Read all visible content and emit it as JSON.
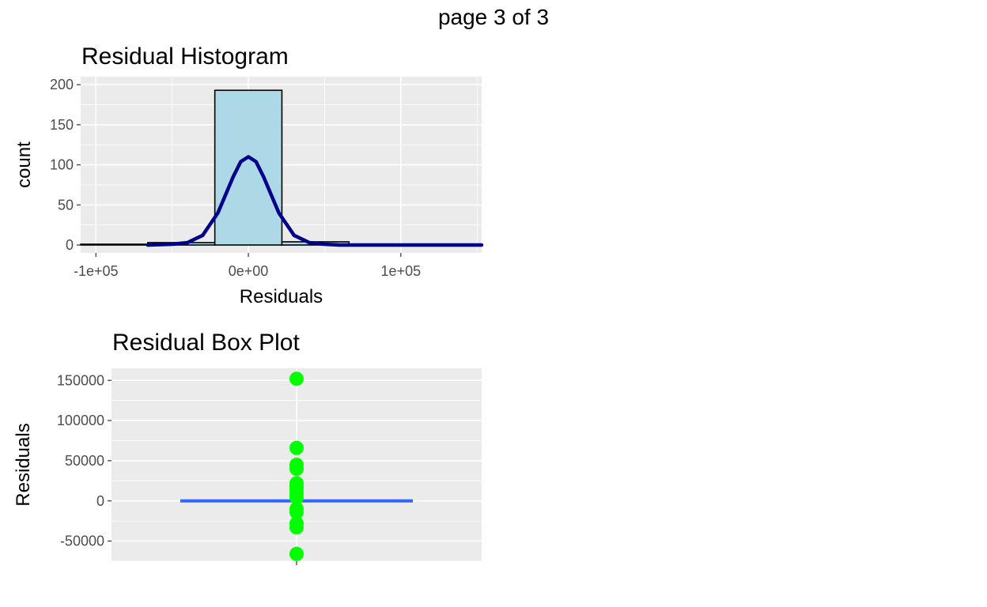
{
  "page": {
    "label": "page 3 of 3"
  },
  "chart_data": [
    {
      "type": "histogram",
      "title": "Residual Histogram",
      "xlabel": "Residuals",
      "ylabel": "count",
      "x_ticks": [
        -100000,
        0,
        100000
      ],
      "x_tick_labels": [
        "-1e+05",
        "0e+00",
        "1e+05"
      ],
      "y_ticks": [
        0,
        50,
        100,
        150,
        200
      ],
      "y_tick_labels": [
        "0",
        "50",
        "100",
        "150",
        "200"
      ],
      "xlim": [
        -110000,
        153000
      ],
      "ylim": [
        0,
        200
      ],
      "grid": true,
      "bins": [
        {
          "x0": -110000,
          "x1": -66000,
          "count": 1
        },
        {
          "x0": -66000,
          "x1": -22000,
          "count": 3
        },
        {
          "x0": -22000,
          "x1": 22000,
          "count": 193
        },
        {
          "x0": 22000,
          "x1": 66000,
          "count": 4
        },
        {
          "x0": 66000,
          "x1": 110000,
          "count": 1
        },
        {
          "x0": 110000,
          "x1": 153000,
          "count": 1
        }
      ],
      "density_curve": {
        "x": [
          -66000,
          -50000,
          -40000,
          -30000,
          -20000,
          -10000,
          -5000,
          0,
          5000,
          10000,
          20000,
          30000,
          40000,
          50000,
          60000,
          80000,
          110000,
          153000
        ],
        "y": [
          0,
          1,
          3,
          12,
          40,
          85,
          104,
          110,
          104,
          85,
          40,
          12,
          3,
          1,
          0,
          0,
          0,
          0
        ]
      },
      "colors": {
        "fill": "#ADD8E6",
        "outline": "#000000",
        "curve": "#00008B"
      }
    },
    {
      "type": "boxplot",
      "title": "Residual Box Plot",
      "ylabel": "Residuals",
      "y_ticks": [
        -50000,
        0,
        50000,
        100000,
        150000
      ],
      "y_tick_labels": [
        "-50000",
        "0",
        "50000",
        "100000",
        "150000"
      ],
      "ylim": [
        -75000,
        165000
      ],
      "grid": true,
      "box": {
        "q1": -1000,
        "median": 0,
        "q3": 1000
      },
      "outliers": [
        152000,
        66000,
        45000,
        40000,
        22000,
        18000,
        14000,
        9000,
        4000,
        -10000,
        -14000,
        -28000,
        -33000,
        -66000
      ],
      "colors": {
        "box": "#3366FF",
        "outlier": "#00FF00"
      }
    }
  ]
}
